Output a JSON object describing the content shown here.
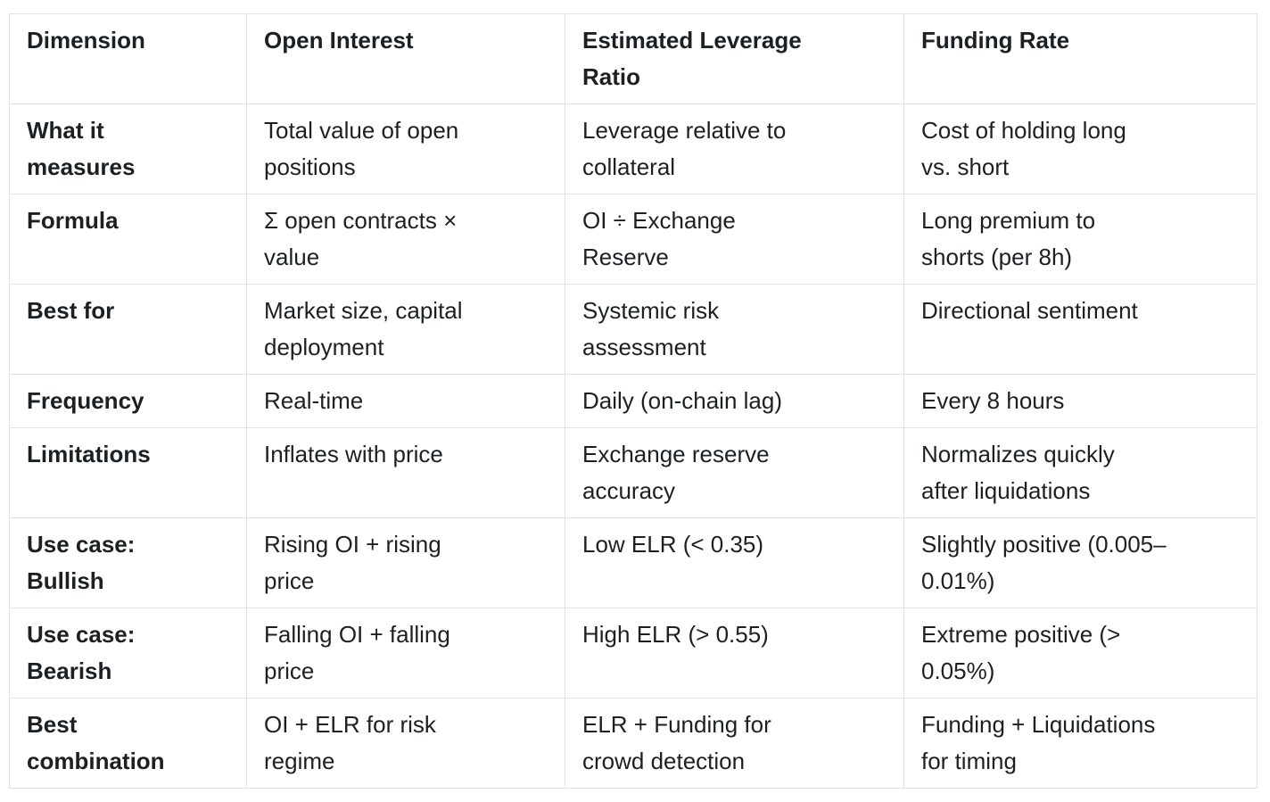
{
  "table": {
    "columns": [
      "Dimension",
      "Open Interest",
      "Estimated Leverage\nRatio",
      "Funding Rate"
    ],
    "rows": [
      {
        "dimension": "What it\nmeasures",
        "cells": [
          "Total value of open\npositions",
          "Leverage relative to\ncollateral",
          "Cost of holding long\nvs. short"
        ]
      },
      {
        "dimension": "Formula",
        "cells": [
          "Σ open contracts ×\nvalue",
          "OI ÷ Exchange\nReserve",
          "Long premium to\nshorts (per 8h)"
        ]
      },
      {
        "dimension": "Best for",
        "cells": [
          "Market size, capital\ndeployment",
          "Systemic risk\nassessment",
          "Directional sentiment"
        ]
      },
      {
        "dimension": "Frequency",
        "cells": [
          "Real-time",
          "Daily (on-chain lag)",
          "Every 8 hours"
        ]
      },
      {
        "dimension": "Limitations",
        "cells": [
          "Inflates with price",
          "Exchange reserve\naccuracy",
          "Normalizes quickly\nafter liquidations"
        ]
      },
      {
        "dimension": "Use case:\nBullish",
        "cells": [
          "Rising OI + rising\nprice",
          "Low ELR (< 0.35)",
          "Slightly positive (0.005–\n0.01%)"
        ]
      },
      {
        "dimension": "Use case:\nBearish",
        "cells": [
          "Falling OI + falling\nprice",
          "High ELR (> 0.55)",
          "Extreme positive (>\n0.05%)"
        ]
      },
      {
        "dimension": "Best\ncombination",
        "cells": [
          "OI + ELR for risk\nregime",
          "ELR + Funding for\ncrowd detection",
          "Funding + Liquidations\nfor timing"
        ]
      }
    ],
    "colors": {
      "background": "#ffffff",
      "border": "#e1e2e3",
      "text": "#1d2023"
    }
  }
}
